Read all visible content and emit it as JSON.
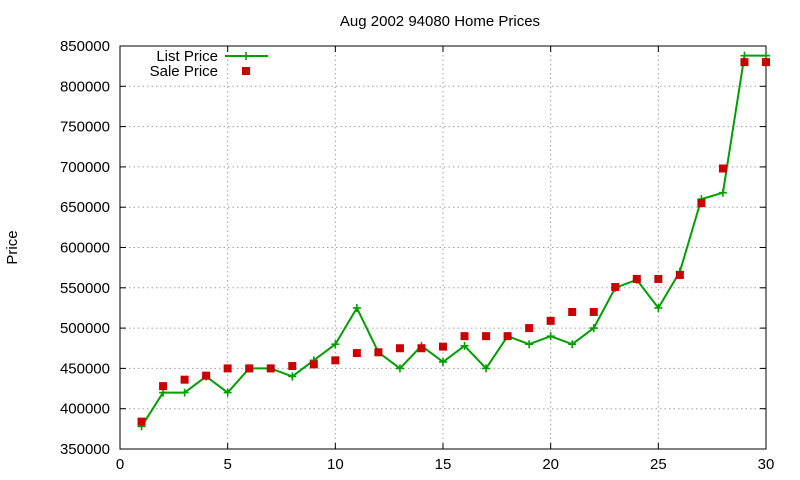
{
  "chart_data": {
    "type": "line",
    "title": "Aug 2002 94080 Home Prices",
    "xlabel": "",
    "ylabel": "Price",
    "xlim": [
      0,
      30
    ],
    "ylim": [
      350000,
      850000
    ],
    "x_ticks": [
      "0",
      "5",
      "10",
      "15",
      "20",
      "25",
      "30"
    ],
    "y_ticks": [
      "350000",
      "400000",
      "450000",
      "500000",
      "550000",
      "600000",
      "650000",
      "700000",
      "750000",
      "800000",
      "850000"
    ],
    "grid": true,
    "legend_position": "top-left",
    "x": [
      1,
      2,
      3,
      4,
      5,
      6,
      7,
      8,
      9,
      10,
      11,
      12,
      13,
      14,
      15,
      16,
      17,
      18,
      19,
      20,
      21,
      22,
      23,
      24,
      25,
      26,
      27,
      28,
      29,
      30
    ],
    "series": [
      {
        "name": "List Price",
        "style": "lines+crosses",
        "color": "#00a000",
        "values": [
          378000,
          420000,
          420000,
          440000,
          420000,
          450000,
          450000,
          440000,
          460000,
          480000,
          525000,
          470000,
          450000,
          478000,
          458000,
          478000,
          450000,
          490000,
          480000,
          490000,
          480000,
          500000,
          550000,
          560000,
          525000,
          570000,
          660000,
          668000,
          838000,
          838000
        ]
      },
      {
        "name": "Sale Price",
        "style": "squares",
        "color": "#cc0000",
        "values": [
          384000,
          428000,
          436000,
          441000,
          450000,
          450000,
          450000,
          453000,
          455000,
          460000,
          469000,
          470000,
          475000,
          475000,
          477000,
          490000,
          490000,
          490000,
          500000,
          509000,
          520000,
          520000,
          551000,
          561000,
          561000,
          566000,
          655000,
          698000,
          830000,
          830000
        ]
      }
    ]
  }
}
